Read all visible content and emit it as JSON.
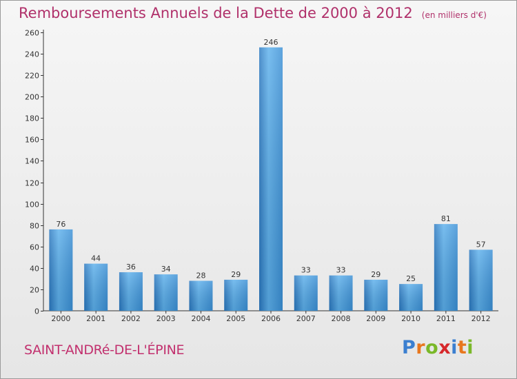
{
  "chart_data": {
    "type": "bar",
    "title": "Remboursements Annuels de la Dette de 2000 à 2012",
    "subtitle": "(en milliers d'€)",
    "categories": [
      "2000",
      "2001",
      "2002",
      "2003",
      "2004",
      "2005",
      "2006",
      "2007",
      "2008",
      "2009",
      "2010",
      "2011",
      "2012"
    ],
    "values": [
      76,
      44,
      36,
      34,
      28,
      29,
      246,
      33,
      33,
      29,
      25,
      81,
      57
    ],
    "ylim": [
      0,
      260
    ],
    "yticks": [
      0,
      20,
      40,
      60,
      80,
      100,
      120,
      140,
      160,
      180,
      200,
      220,
      240,
      260
    ],
    "xlabel": "",
    "ylabel": "",
    "grid": false,
    "bar_color": "#3a8fd5",
    "title_color": "#b0306a"
  },
  "footer": {
    "city": "SAINT-ANDRé-DE-L'ÉPINE"
  },
  "logo": {
    "text": "Proxiti",
    "letter_colors": [
      "#3b7fd0",
      "#e8771e",
      "#7ab829",
      "#d6282b",
      "#3b7fd0",
      "#e8771e",
      "#7ab829"
    ]
  }
}
